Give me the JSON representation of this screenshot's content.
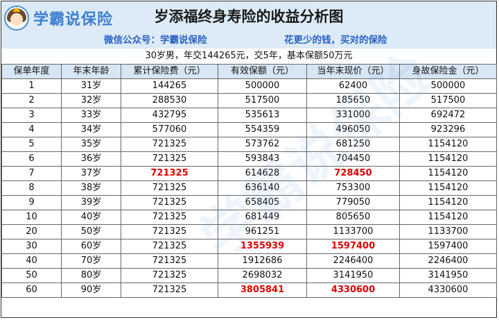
{
  "header": {
    "logo_text": "学霸说保险",
    "title": "岁添福终身寿险的收益分析图",
    "wechat_line": "微信公众号：学霸说保险",
    "slogan": "花更少的钱，买对的保险",
    "summary": "30岁男，年交144265元，交5年，基本保额50万元"
  },
  "watermark": "学霸说保险",
  "colors": {
    "header_bg": "#dcebf7",
    "accent_blue": "#2b62c4",
    "highlight_red": "#e00000"
  },
  "table": {
    "columns": [
      "保单年度",
      "年末年龄",
      "累计保险费（元）",
      "有效保额（元）",
      "当年末现价（元）",
      "身故保险金（元）"
    ],
    "rows": [
      [
        "1",
        "31岁",
        "144265",
        "500000",
        "62400",
        "500000"
      ],
      [
        "2",
        "32岁",
        "288530",
        "517500",
        "185650",
        "517500"
      ],
      [
        "3",
        "33岁",
        "432795",
        "535613",
        "331000",
        "692472"
      ],
      [
        "4",
        "34岁",
        "577060",
        "554359",
        "496050",
        "923296"
      ],
      [
        "5",
        "35岁",
        "721325",
        "573762",
        "681250",
        "1154120"
      ],
      [
        "6",
        "36岁",
        "721325",
        "593843",
        "704450",
        "1154120"
      ],
      [
        "7",
        "37岁",
        "721325",
        "614628",
        "728450",
        "1154120"
      ],
      [
        "8",
        "38岁",
        "721325",
        "636140",
        "753300",
        "1154120"
      ],
      [
        "9",
        "39岁",
        "721325",
        "658405",
        "779050",
        "1154120"
      ],
      [
        "10",
        "40岁",
        "721325",
        "681449",
        "805650",
        "1154120"
      ],
      [
        "20",
        "50岁",
        "721325",
        "961251",
        "1133700",
        "1133700"
      ],
      [
        "30",
        "60岁",
        "721325",
        "1355939",
        "1597400",
        "1597400"
      ],
      [
        "40",
        "70岁",
        "721325",
        "1912686",
        "2246400",
        "2246400"
      ],
      [
        "50",
        "80岁",
        "721325",
        "2698032",
        "3141950",
        "3141950"
      ],
      [
        "60",
        "90岁",
        "721325",
        "3805841",
        "4330600",
        "4330600"
      ]
    ],
    "highlights": [
      [
        6,
        2
      ],
      [
        6,
        4
      ],
      [
        11,
        3
      ],
      [
        11,
        4
      ],
      [
        14,
        3
      ],
      [
        14,
        4
      ]
    ]
  }
}
